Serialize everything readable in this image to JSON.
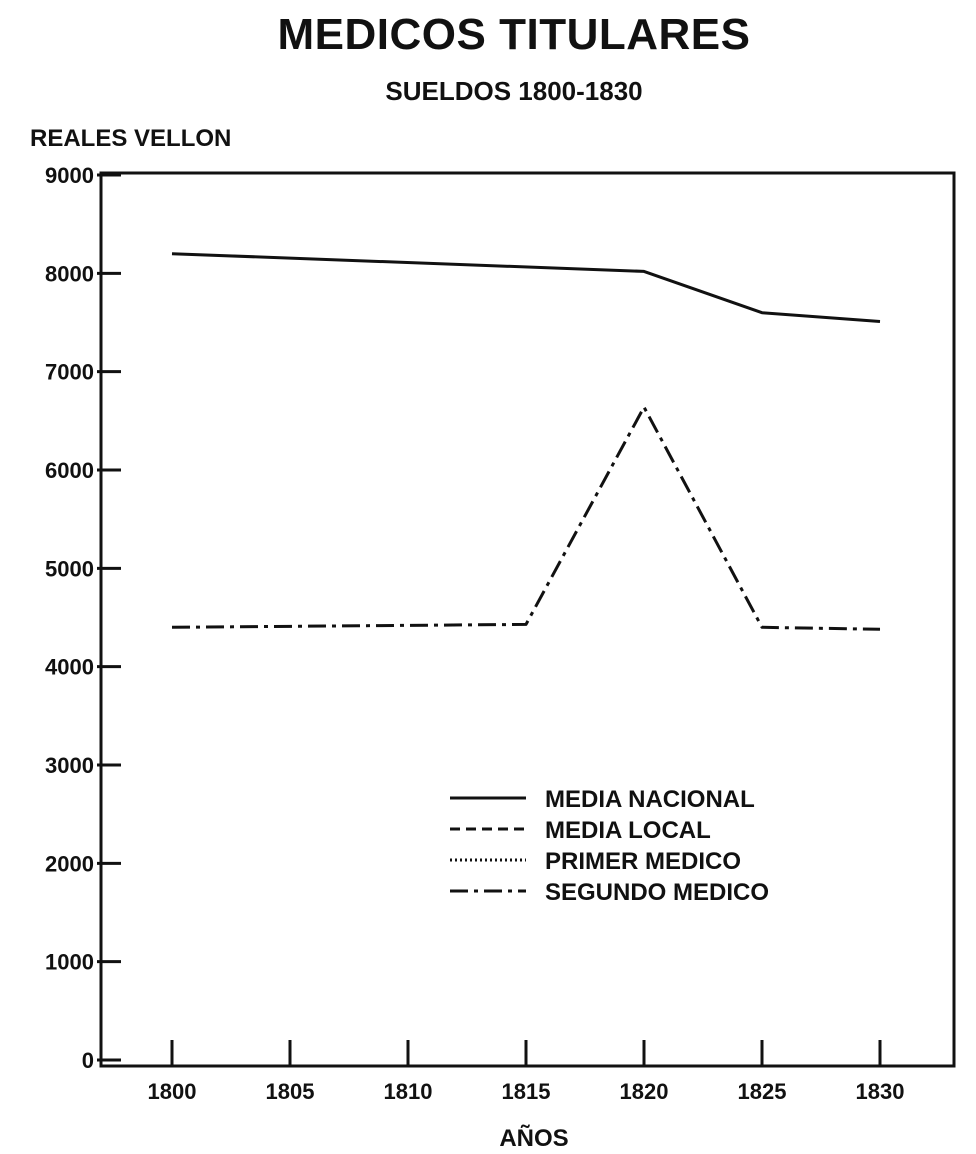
{
  "chart_data": {
    "type": "line",
    "title": "MEDICOS TITULARES",
    "subtitle": "SUELDOS 1800-1830",
    "ylabel": "REALES VELLON",
    "xlabel": "AÑOS",
    "x": [
      1800,
      1805,
      1810,
      1815,
      1820,
      1825,
      1830
    ],
    "xticks": [
      "1800",
      "1805",
      "1810",
      "1815",
      "1820",
      "1825",
      "1830"
    ],
    "ylim": [
      0,
      9000
    ],
    "yticks": [
      "0",
      "1000",
      "2000",
      "3000",
      "4000",
      "5000",
      "6000",
      "7000",
      "8000",
      "9000"
    ],
    "grid": false,
    "legend_position": "lower-right",
    "series": [
      {
        "name": "MEDIA NACIONAL",
        "style": "solid",
        "points": [
          [
            1800,
            8200
          ],
          [
            1820,
            8020
          ],
          [
            1825,
            7600
          ],
          [
            1830,
            7510
          ]
        ]
      },
      {
        "name": "MEDIA LOCAL",
        "style": "dashed",
        "points": []
      },
      {
        "name": "PRIMER MEDICO",
        "style": "dotted",
        "points": []
      },
      {
        "name": "SEGUNDO MEDICO",
        "style": "dash-dot",
        "points": [
          [
            1800,
            4400
          ],
          [
            1815,
            4430
          ],
          [
            1820,
            6640
          ],
          [
            1825,
            4400
          ],
          [
            1830,
            4380
          ]
        ]
      }
    ]
  }
}
